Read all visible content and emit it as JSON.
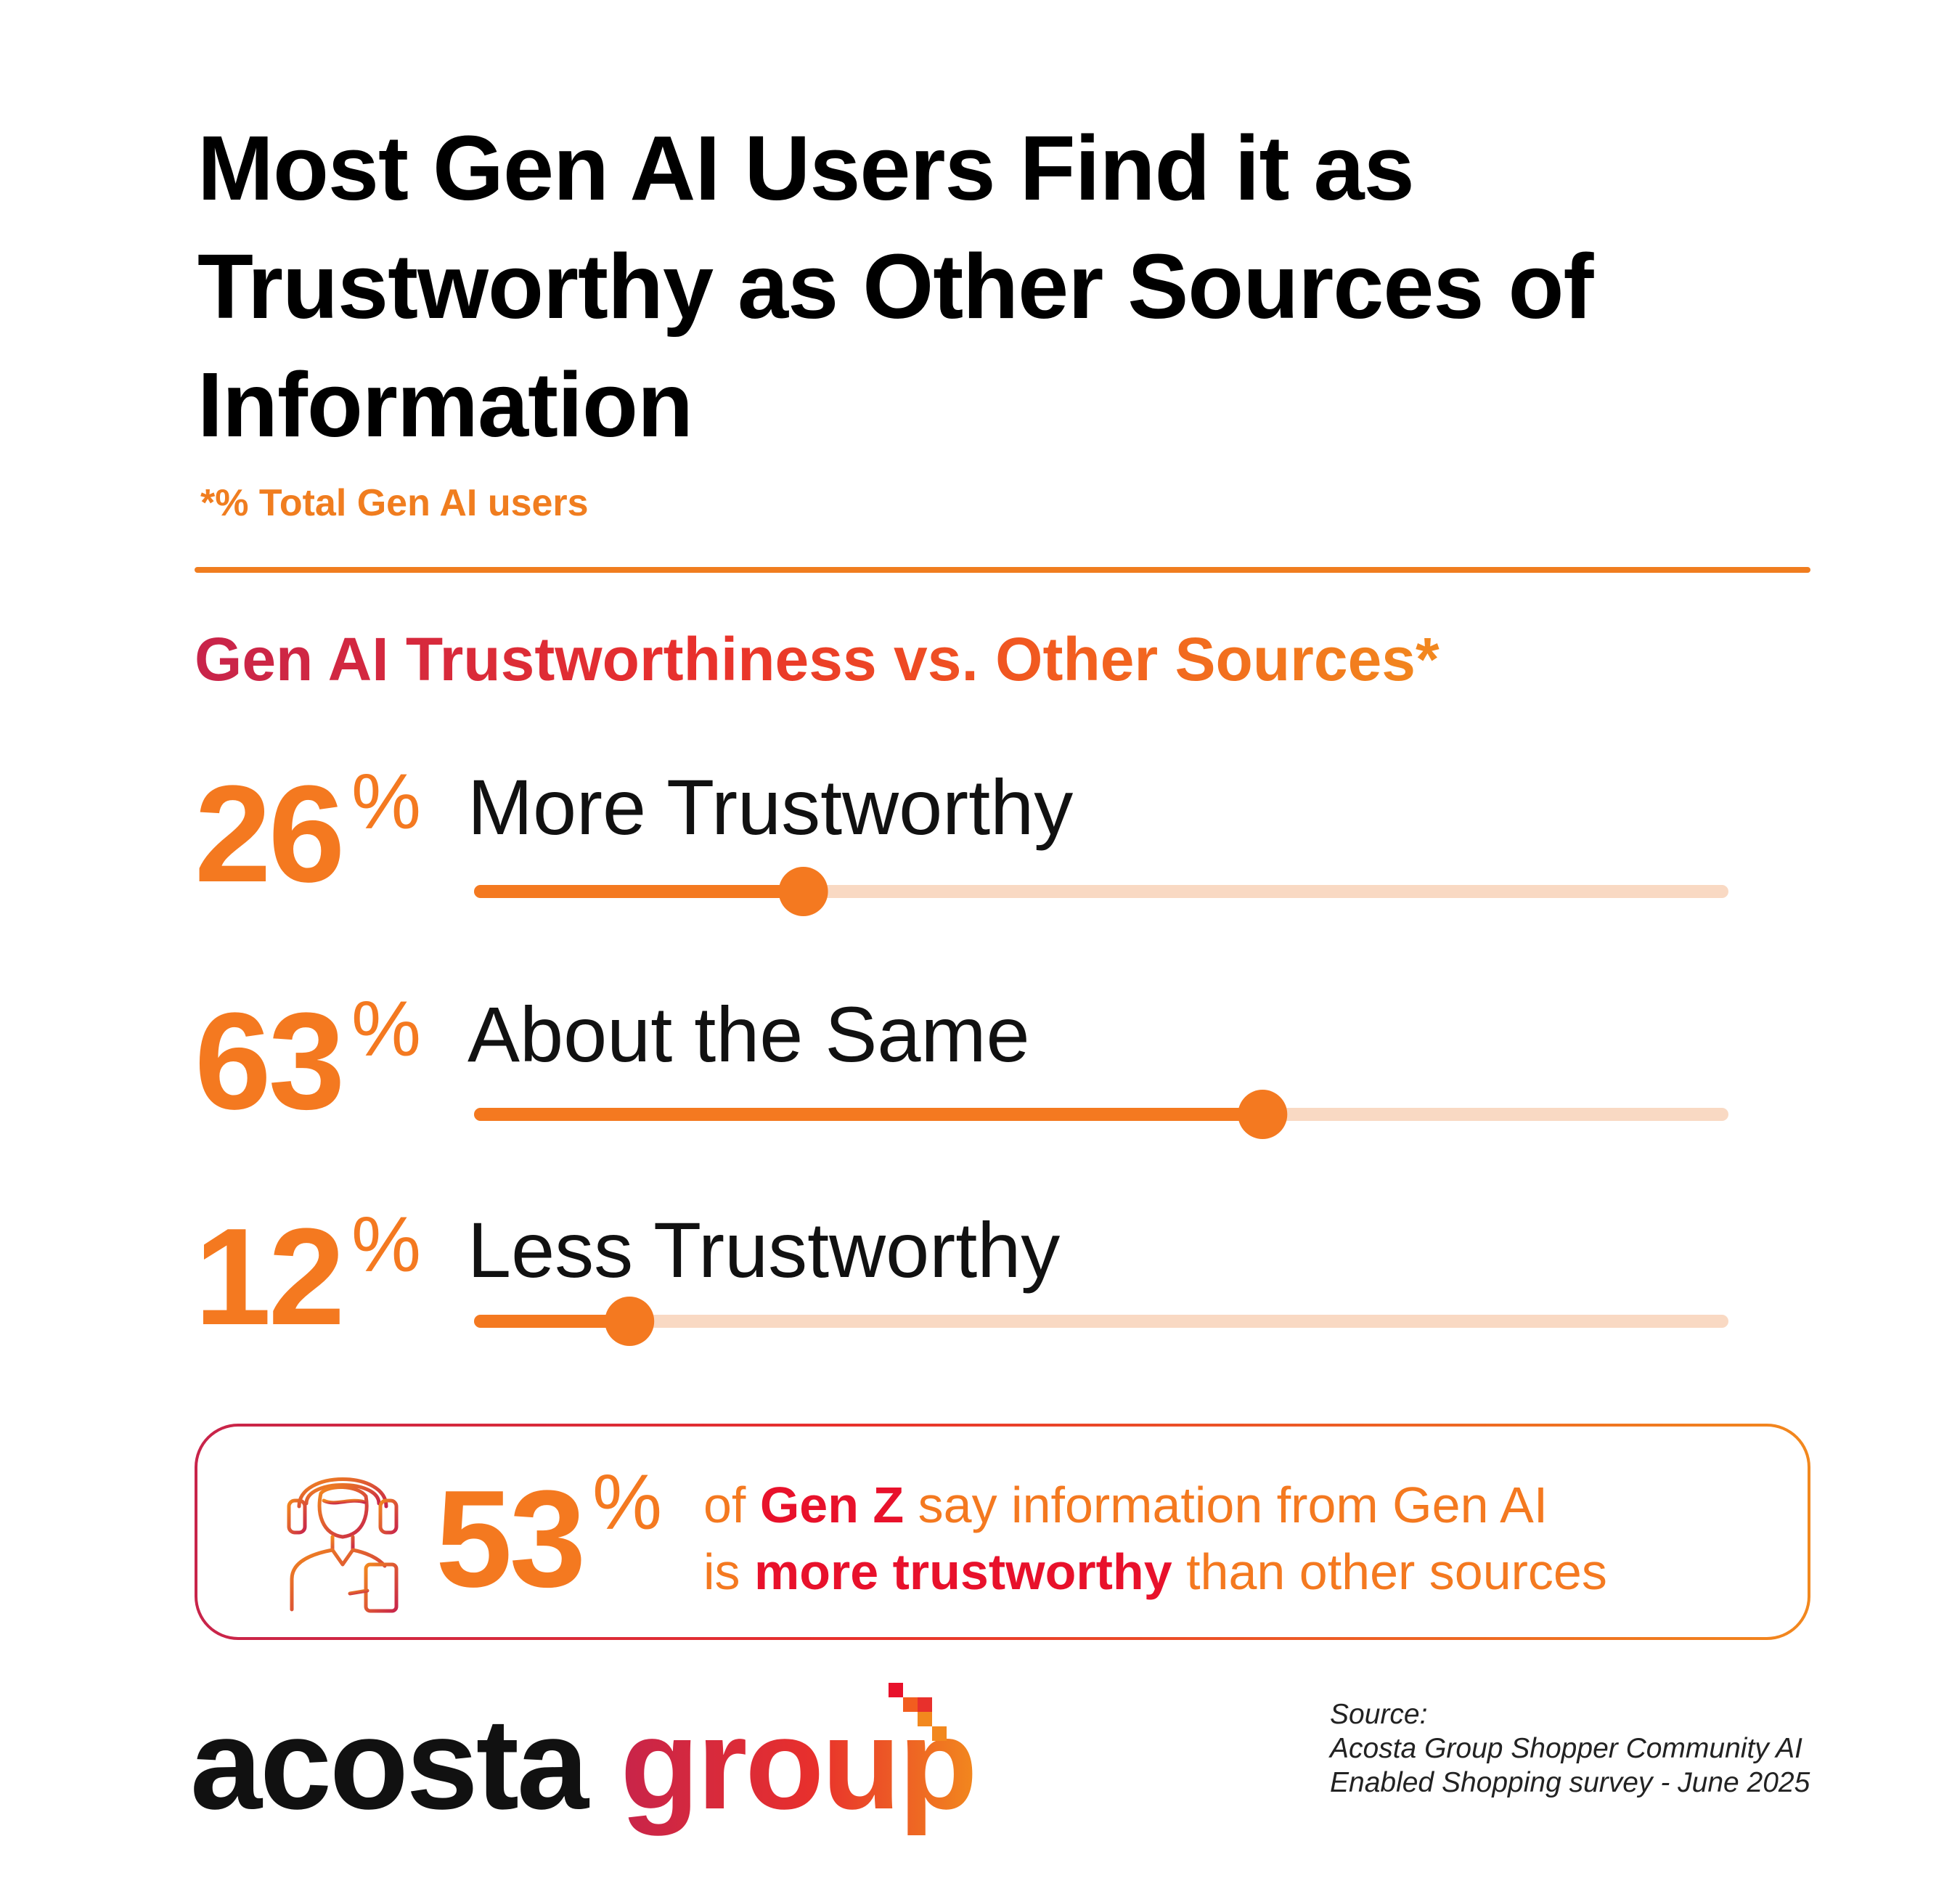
{
  "title": "Most Gen AI Users Find it as Trustworthy as Other Sources of Information",
  "subnote": "*% Total Gen AI users",
  "chart_data": {
    "type": "bar",
    "title": "Gen AI Trustworthiness vs. Other Sources*",
    "categories": [
      "More Trustworthy",
      "About the Same",
      "Less Trustworthy"
    ],
    "values": [
      26,
      63,
      12
    ],
    "display_values": [
      "26",
      "63",
      "12"
    ],
    "unit": "%",
    "ylim": [
      0,
      100
    ],
    "colors": {
      "fill": "#f47920",
      "track": "#f9d9c3",
      "number": "#f47920"
    }
  },
  "callout": {
    "value": "53",
    "unit": "%",
    "line1_pre": "of ",
    "line1_em": "Gen Z",
    "line1_post": " say information from Gen AI",
    "line2_pre": "is ",
    "line2_em": "more trustworthy",
    "line2_post": " than other sources",
    "icon": "headphones-person-phone-icon",
    "colors": {
      "text": "#f47920",
      "emphasis": "#e8112b"
    }
  },
  "logo": {
    "word1": "acosta",
    "word2": "group"
  },
  "source": {
    "label": "Source:",
    "line1": "Acosta Group Shopper Community AI",
    "line2": "Enabled Shopping survey - June 2025"
  }
}
